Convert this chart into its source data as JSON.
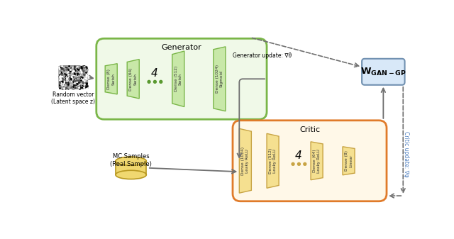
{
  "gen_label": "Generator",
  "critic_label": "Critic",
  "random_vector_label": "Random vector\n(Latent space z)",
  "mc_samples_label": "MC Samples\n(Real Sample)",
  "gen_update_label": "Generator update: ∇θ",
  "critic_update_label": "Critic update: ∇φ",
  "gen_layers": [
    "Dense (8)\nSwish",
    "Dense (64)\nSwish",
    "Dense (512)\nSwish",
    "Dense (1024)\nSigmoid"
  ],
  "critic_layers": [
    "Dense (1024)\nLeaky ReLU",
    "Dense (512)\nLeaky ReLU",
    "Dense (64)\nLeaky ReLU",
    "Dense (8)\nLinear"
  ],
  "gen_box_color": "#7ab648",
  "gen_box_fill": "#f0f9e8",
  "gen_layer_fill": "#c8e8a8",
  "gen_layer_edge": "#7ab648",
  "critic_box_color": "#e07b2a",
  "critic_box_fill": "#fff8e8",
  "critic_layer_fill": "#f5e090",
  "critic_layer_edge": "#c8a444",
  "wgan_box_fill": "#d8e8f8",
  "wgan_box_edge": "#7090b0",
  "gen_dots_color": "#5a9a30",
  "critic_dots_color": "#c8a444",
  "arrow_color": "#707070",
  "noise_image_bg": "#b8b8b8",
  "db_fill": "#f0d870",
  "db_edge": "#b89820"
}
